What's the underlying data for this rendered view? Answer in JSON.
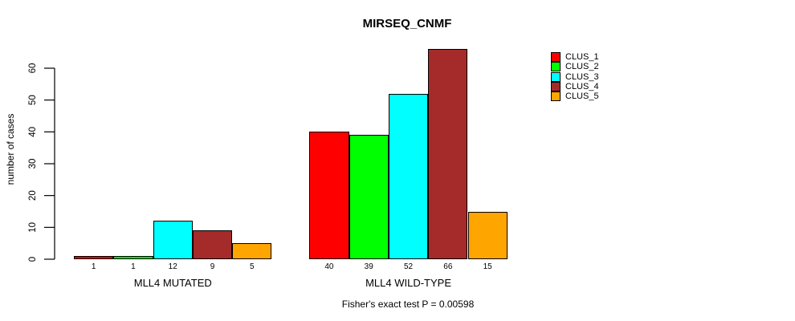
{
  "chart_data": {
    "type": "bar",
    "title": "MIRSEQ_CNMF",
    "xlabel": "",
    "ylabel": "number of cases",
    "annotation": "Fisher's exact test P = 0.00598",
    "groups": [
      "MLL4 MUTATED",
      "MLL4 WILD-TYPE"
    ],
    "series": [
      {
        "name": "CLUS_1",
        "color": "#FF0000",
        "values": [
          1,
          40
        ]
      },
      {
        "name": "CLUS_2",
        "color": "#00FF00",
        "values": [
          1,
          39
        ]
      },
      {
        "name": "CLUS_3",
        "color": "#00FFFF",
        "values": [
          12,
          52
        ]
      },
      {
        "name": "CLUS_4",
        "color": "#A52A2A",
        "values": [
          9,
          66
        ]
      },
      {
        "name": "CLUS_5",
        "color": "#FFA500",
        "values": [
          5,
          15
        ]
      }
    ],
    "bar_value_labels": [
      [
        "1",
        "1",
        "12",
        "9",
        "5"
      ],
      [
        "40",
        "39",
        "52",
        "66",
        "15"
      ]
    ],
    "yticks": [
      0,
      10,
      20,
      30,
      40,
      50,
      60
    ],
    "ylim": [
      0,
      66
    ],
    "grid": false,
    "legend_position": "right",
    "legend_entries": [
      "CLUS_1",
      "CLUS_2",
      "CLUS_3",
      "CLUS_4",
      "CLUS_5"
    ],
    "colors": {
      "CLUS_1": "#FF0000",
      "CLUS_2": "#00FF00",
      "CLUS_3": "#00FFFF",
      "CLUS_4": "#A52A2A",
      "CLUS_5": "#FFA500",
      "axis": "#000000",
      "text": "#000000",
      "background": "#FFFFFF"
    }
  }
}
